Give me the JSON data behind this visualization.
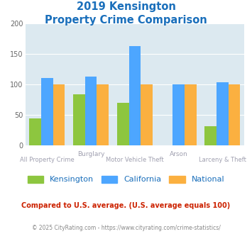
{
  "title_line1": "2019 Kensington",
  "title_line2": "Property Crime Comparison",
  "categories": [
    "All Property Crime",
    "Burglary",
    "Motor Vehicle Theft",
    "Arson",
    "Larceny & Theft"
  ],
  "top_labels": {
    "1": "Burglary",
    "3": "Arson"
  },
  "bottom_labels": {
    "0": "All Property Crime",
    "2": "Motor Vehicle Theft",
    "4": "Larceny & Theft"
  },
  "kensington": [
    44,
    83,
    69,
    0,
    31
  ],
  "california": [
    110,
    113,
    163,
    100,
    103
  ],
  "national": [
    100,
    100,
    100,
    100,
    100
  ],
  "bar_colors": {
    "kensington": "#8dc63f",
    "california": "#4da6ff",
    "national": "#fbb040"
  },
  "ylim": [
    0,
    200
  ],
  "yticks": [
    0,
    50,
    100,
    150,
    200
  ],
  "bgcolor": "#dce9f0",
  "title_color": "#1a6fbb",
  "label_color": "#a0a0b0",
  "legend_labels": [
    "Kensington",
    "California",
    "National"
  ],
  "legend_color": "#1a6fbb",
  "footnote": "Compared to U.S. average. (U.S. average equals 100)",
  "copyright": "© 2025 CityRating.com - https://www.cityrating.com/crime-statistics/",
  "footnote_color": "#cc2200",
  "copyright_color": "#888888"
}
